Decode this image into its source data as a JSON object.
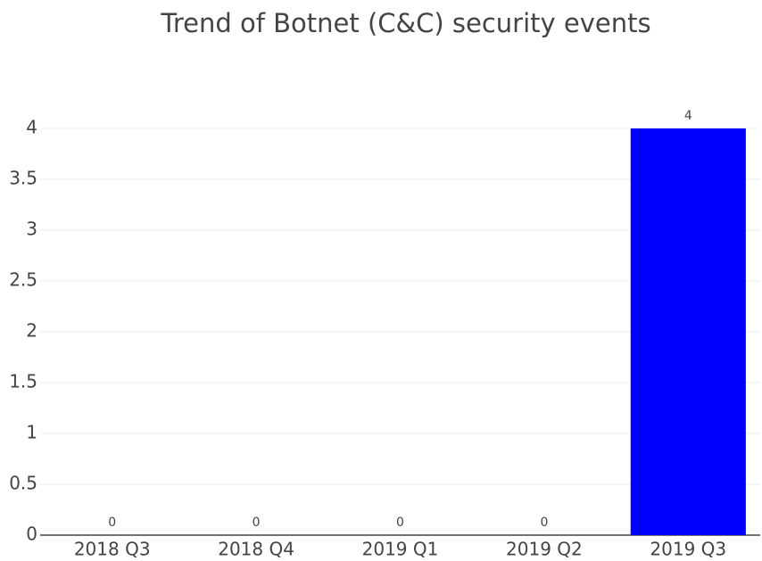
{
  "chart_data": {
    "type": "bar",
    "title": "Trend of Botnet (C&C) security events",
    "categories": [
      "2018 Q3",
      "2018 Q4",
      "2019 Q1",
      "2019 Q2",
      "2019 Q3"
    ],
    "values": [
      0,
      0,
      0,
      0,
      4
    ],
    "color": "#0000ff",
    "ylim": [
      0,
      4
    ],
    "yticks": [
      0,
      0.5,
      1,
      1.5,
      2,
      2.5,
      3,
      3.5,
      4
    ],
    "grid": true
  }
}
